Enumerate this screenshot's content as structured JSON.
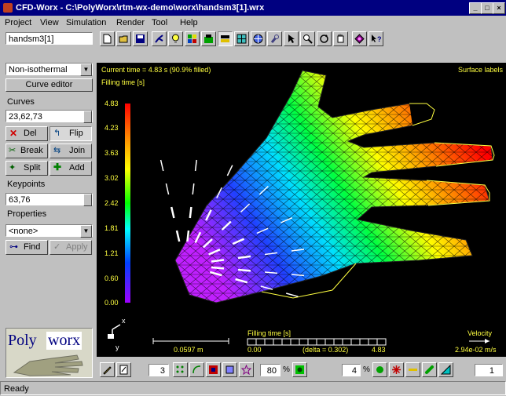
{
  "window": {
    "title": "CFD-Worx - C:\\PolyWorx\\rtm-wx-demo\\worx\\handsm3[1].wrx"
  },
  "menu": [
    "Project",
    "View",
    "Simulation",
    "Render",
    "Tool",
    "Help"
  ],
  "sidebar": {
    "model_name": "handsm3[1]",
    "thermal_mode": "Non-isothermal",
    "curve_editor_label": "Curve editor",
    "curves_label": "Curves",
    "curves_value": "23,62,73",
    "del_label": "Del",
    "flip_label": "Flip",
    "break_label": "Break",
    "join_label": "Join",
    "split_label": "Split",
    "add_label": "Add",
    "keypoints_label": "Keypoints",
    "keypoints_value": "63,76",
    "properties_label": "Properties",
    "properties_value": "<none>",
    "find_label": "Find",
    "apply_label": "Apply",
    "logo_part1": "Poly",
    "logo_part2": "worx"
  },
  "viewport": {
    "current_time": "Current time = 4.83 s (90.9% filled)",
    "surface_labels": "Surface labels",
    "legend_title": "Filling time [s]",
    "legend_ticks": [
      "4.83",
      "4.23",
      "3.63",
      "3.02",
      "2.42",
      "1.81",
      "1.21",
      "0.60",
      "0.00"
    ],
    "scale_length": "0.0597 m",
    "timebar_title": "Filling time [s]",
    "timebar_min": "0.00",
    "timebar_delta": "(delta = 0.302)",
    "timebar_max": "4.83",
    "velocity_title": "Velocity",
    "velocity_value": "2.94e-02 m/s",
    "axis_x": "x",
    "axis_y": "y"
  },
  "bottom_toolbar": {
    "field1": "3",
    "field2": "80",
    "field3": "4",
    "field4": "1"
  },
  "status": "Ready",
  "colors": {
    "title_bg": "#000080",
    "panel": "#c0c0c0",
    "viewport_bg": "#000000",
    "overlay_text": "#ffff40"
  }
}
